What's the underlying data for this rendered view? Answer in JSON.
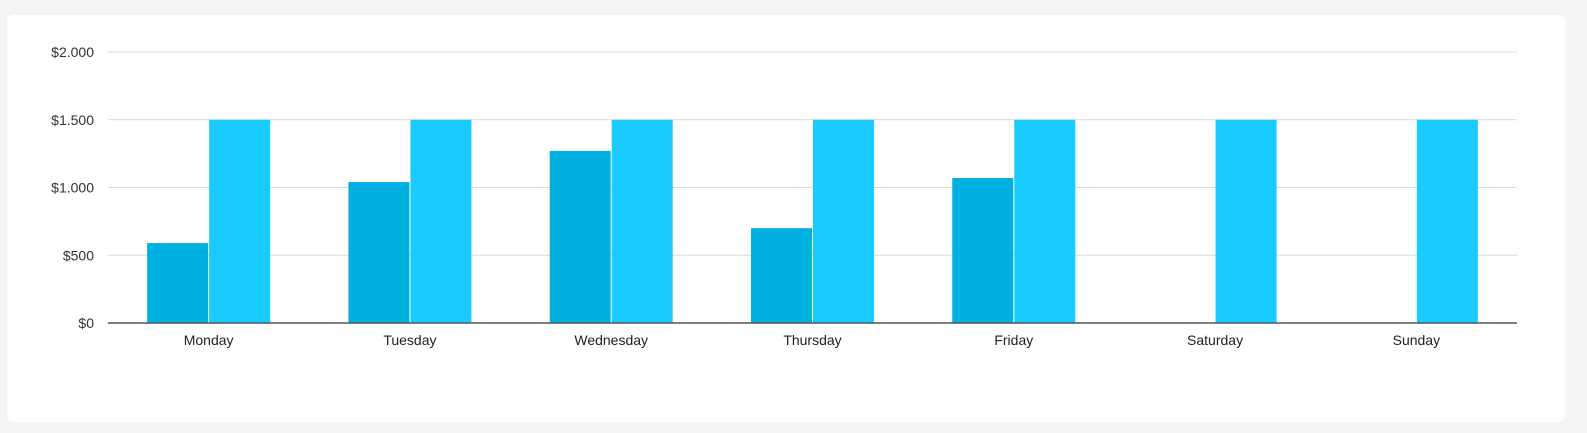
{
  "chart_data": {
    "type": "bar",
    "categories": [
      "Monday",
      "Tuesday",
      "Wednesday",
      "Thursday",
      "Friday",
      "Saturday",
      "Sunday"
    ],
    "series": [
      {
        "values": [
          590,
          1040,
          1270,
          700,
          1070,
          0,
          0
        ],
        "color": "#00b0e0"
      },
      {
        "values": [
          1500,
          1500,
          1500,
          1500,
          1500,
          1500,
          1500
        ],
        "color": "#19cbff"
      }
    ],
    "ylim": [
      0,
      2000
    ],
    "yticks": [
      0,
      500,
      1000,
      1500,
      2000
    ],
    "ytick_labels": [
      "$0",
      "$500",
      "$1.000",
      "$1.500",
      "$2.000"
    ],
    "grid": true,
    "title": "",
    "xlabel": "",
    "ylabel": "",
    "colors": {
      "grid": "#d9d9d9",
      "axis": "#555555",
      "background": "#ffffff",
      "page_background": "#f4f4f4"
    }
  }
}
